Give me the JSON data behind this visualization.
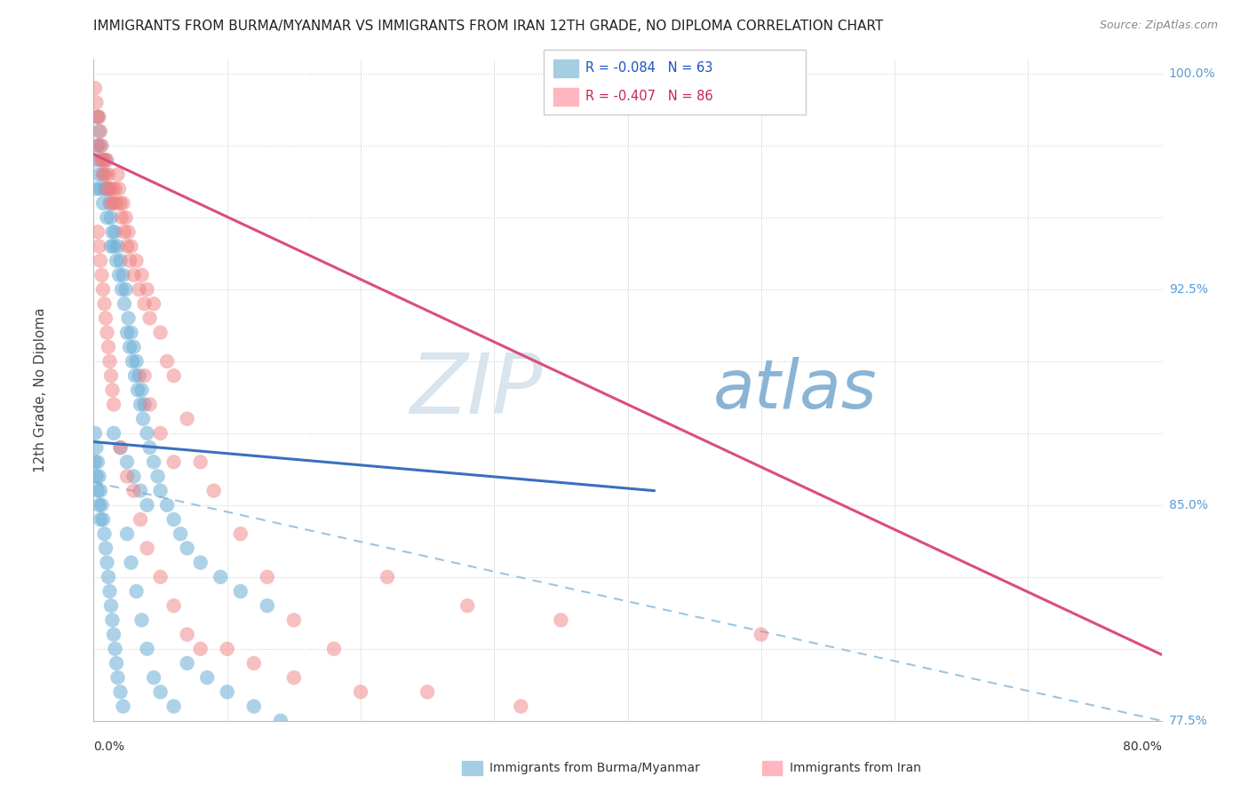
{
  "title": "IMMIGRANTS FROM BURMA/MYANMAR VS IMMIGRANTS FROM IRAN 12TH GRADE, NO DIPLOMA CORRELATION CHART",
  "source": "Source: ZipAtlas.com",
  "ylabel_label": "12th Grade, No Diploma",
  "legend1_r": "R = -0.084",
  "legend1_n": "N = 63",
  "legend2_r": "R = -0.407",
  "legend2_n": "N = 86",
  "blue_color": "#6baed6",
  "pink_color": "#f08080",
  "blue_legend_color": "#a6cee3",
  "pink_legend_color": "#ffb6c1",
  "watermark_zip": "ZIP",
  "watermark_atlas": "atlas",
  "watermark_color_zip": "#d0dce8",
  "watermark_color_atlas": "#88aac8",
  "x_min": 0.0,
  "x_max": 0.8,
  "y_min": 0.775,
  "y_max": 1.005,
  "right_labels": {
    "1.0": "100.0%",
    "0.925": "92.5%",
    "0.85": "85.0%",
    "0.775": "77.5%"
  },
  "blue_scatter_x": [
    0.001,
    0.002,
    0.003,
    0.003,
    0.004,
    0.004,
    0.005,
    0.005,
    0.006,
    0.007,
    0.007,
    0.008,
    0.009,
    0.01,
    0.01,
    0.011,
    0.012,
    0.013,
    0.013,
    0.014,
    0.015,
    0.016,
    0.017,
    0.018,
    0.019,
    0.02,
    0.021,
    0.022,
    0.023,
    0.024,
    0.025,
    0.026,
    0.027,
    0.028,
    0.029,
    0.03,
    0.031,
    0.032,
    0.033,
    0.034,
    0.035,
    0.036,
    0.037,
    0.038,
    0.04,
    0.042,
    0.045,
    0.048,
    0.05,
    0.055,
    0.06,
    0.065,
    0.07,
    0.08,
    0.095,
    0.11,
    0.13,
    0.015,
    0.02,
    0.025,
    0.03,
    0.035,
    0.04
  ],
  "blue_scatter_y": [
    0.97,
    0.96,
    0.985,
    0.975,
    0.98,
    0.965,
    0.96,
    0.975,
    0.97,
    0.965,
    0.955,
    0.96,
    0.97,
    0.96,
    0.95,
    0.96,
    0.955,
    0.95,
    0.94,
    0.945,
    0.94,
    0.945,
    0.935,
    0.94,
    0.93,
    0.935,
    0.925,
    0.93,
    0.92,
    0.925,
    0.91,
    0.915,
    0.905,
    0.91,
    0.9,
    0.905,
    0.895,
    0.9,
    0.89,
    0.895,
    0.885,
    0.89,
    0.88,
    0.885,
    0.875,
    0.87,
    0.865,
    0.86,
    0.855,
    0.85,
    0.845,
    0.84,
    0.835,
    0.83,
    0.825,
    0.82,
    0.815,
    0.875,
    0.87,
    0.865,
    0.86,
    0.855,
    0.85
  ],
  "blue_scatter_x2": [
    0.001,
    0.002,
    0.003,
    0.004,
    0.005,
    0.006,
    0.007,
    0.008,
    0.009,
    0.01,
    0.011,
    0.012,
    0.013,
    0.014,
    0.015,
    0.016,
    0.017,
    0.018,
    0.02,
    0.022,
    0.025,
    0.028,
    0.032,
    0.036,
    0.04,
    0.045,
    0.05,
    0.06,
    0.07,
    0.085,
    0.1,
    0.12,
    0.14,
    0.001,
    0.002,
    0.003,
    0.004,
    0.005
  ],
  "blue_scatter_y2": [
    0.875,
    0.87,
    0.865,
    0.86,
    0.855,
    0.85,
    0.845,
    0.84,
    0.835,
    0.83,
    0.825,
    0.82,
    0.815,
    0.81,
    0.805,
    0.8,
    0.795,
    0.79,
    0.785,
    0.78,
    0.84,
    0.83,
    0.82,
    0.81,
    0.8,
    0.79,
    0.785,
    0.78,
    0.795,
    0.79,
    0.785,
    0.78,
    0.775,
    0.865,
    0.86,
    0.855,
    0.85,
    0.845
  ],
  "pink_scatter_x": [
    0.001,
    0.002,
    0.003,
    0.003,
    0.004,
    0.005,
    0.005,
    0.006,
    0.007,
    0.007,
    0.008,
    0.009,
    0.01,
    0.01,
    0.011,
    0.012,
    0.013,
    0.014,
    0.015,
    0.016,
    0.017,
    0.018,
    0.019,
    0.02,
    0.021,
    0.022,
    0.023,
    0.024,
    0.025,
    0.026,
    0.027,
    0.028,
    0.03,
    0.032,
    0.034,
    0.036,
    0.038,
    0.04,
    0.042,
    0.045,
    0.05,
    0.055,
    0.06,
    0.07,
    0.08,
    0.09,
    0.11,
    0.13,
    0.15,
    0.18,
    0.22,
    0.28,
    0.35,
    0.5,
    0.003,
    0.004,
    0.005,
    0.006,
    0.007,
    0.008,
    0.009,
    0.01,
    0.011,
    0.012,
    0.013,
    0.014,
    0.015,
    0.02,
    0.025,
    0.03,
    0.035,
    0.04,
    0.05,
    0.06,
    0.07,
    0.08,
    0.1,
    0.12,
    0.15,
    0.2,
    0.25,
    0.32,
    0.038,
    0.042,
    0.05,
    0.06
  ],
  "pink_scatter_y": [
    0.995,
    0.99,
    0.985,
    0.975,
    0.985,
    0.98,
    0.97,
    0.975,
    0.97,
    0.965,
    0.97,
    0.965,
    0.96,
    0.97,
    0.965,
    0.96,
    0.955,
    0.96,
    0.955,
    0.96,
    0.955,
    0.965,
    0.96,
    0.955,
    0.95,
    0.955,
    0.945,
    0.95,
    0.94,
    0.945,
    0.935,
    0.94,
    0.93,
    0.935,
    0.925,
    0.93,
    0.92,
    0.925,
    0.915,
    0.92,
    0.91,
    0.9,
    0.895,
    0.88,
    0.865,
    0.855,
    0.84,
    0.825,
    0.81,
    0.8,
    0.825,
    0.815,
    0.81,
    0.805,
    0.945,
    0.94,
    0.935,
    0.93,
    0.925,
    0.92,
    0.915,
    0.91,
    0.905,
    0.9,
    0.895,
    0.89,
    0.885,
    0.87,
    0.86,
    0.855,
    0.845,
    0.835,
    0.825,
    0.815,
    0.805,
    0.8,
    0.8,
    0.795,
    0.79,
    0.785,
    0.785,
    0.78,
    0.895,
    0.885,
    0.875,
    0.865
  ],
  "blue_trend_x": [
    0.0,
    0.42
  ],
  "blue_trend_y": [
    0.872,
    0.855
  ],
  "pink_trend_x": [
    0.0,
    0.8
  ],
  "pink_trend_y": [
    0.972,
    0.798
  ],
  "dashed_trend_x": [
    0.0,
    0.8
  ],
  "dashed_trend_y": [
    0.858,
    0.775
  ]
}
